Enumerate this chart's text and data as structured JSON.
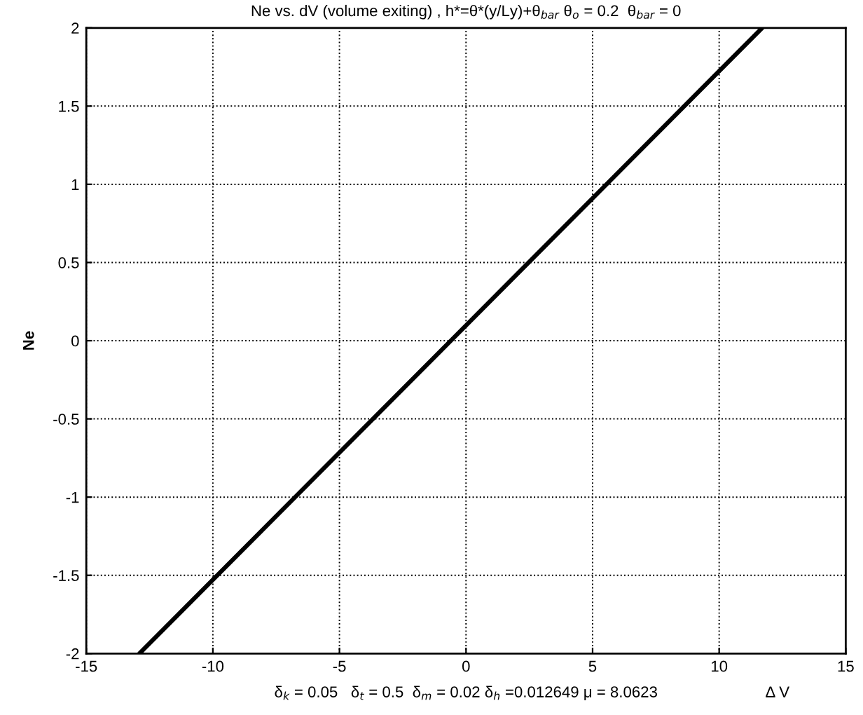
{
  "chart_data": {
    "type": "line",
    "title": "Ne vs. dV (volume exiting) , h*=θ*(y/Ly)+θ$_{bar}$ θ$_{o}$ = 0.2  θ$_{bar}$ = 0",
    "xlabel": "Δ V",
    "ylabel": "Ne",
    "annotations": [
      "δ$_{k}$ = 0.05   δ$_{t}$ = 0.5  δ$_{m}$ = 0.02 δ$_{h}$ =0.012649 μ = 8.0623"
    ],
    "series": [
      {
        "color": "#000000",
        "x": [
          -12.9,
          11.7
        ],
        "values": [
          -2,
          2
        ]
      }
    ],
    "xlim": [
      -15,
      15
    ],
    "xticks": [
      -15,
      -10,
      -5,
      0,
      5,
      10,
      15
    ],
    "ylim": [
      -2,
      2
    ],
    "yticks": [
      -2,
      -1.5,
      -1,
      -0.5,
      0,
      0.5,
      1,
      1.5,
      2
    ],
    "grid": true,
    "line_style": "solid"
  }
}
